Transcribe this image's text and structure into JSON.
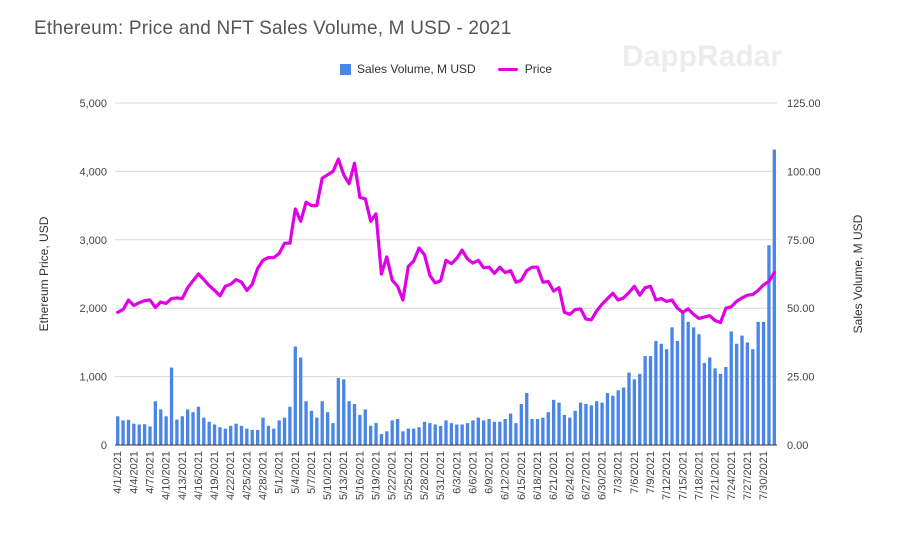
{
  "chart_data": {
    "type": "bar+line",
    "title": "Ethereum: Price and NFT Sales Volume, M USD - 2021",
    "watermark": "DappRadar",
    "legend": {
      "bar_label": "Sales Volume, M USD",
      "line_label": "Price",
      "position": "top"
    },
    "colors": {
      "bar": "#4a86e8",
      "line": "#e100e5",
      "grid": "#d9d9d9",
      "text": "#444444"
    },
    "left_axis": {
      "label": "Ethereum Price, USD",
      "min": 0,
      "max": 5000,
      "ticks": [
        "0",
        "1,000",
        "2,000",
        "3,000",
        "4,000",
        "5,000"
      ]
    },
    "right_axis": {
      "label": "Sales Volume, M USD",
      "min": 0,
      "max": 125,
      "ticks": [
        "0.00",
        "25.00",
        "50.00",
        "75.00",
        "100.00",
        "125.00"
      ]
    },
    "x_tick_labels": [
      "4/1/2021",
      "4/4/2021",
      "4/7/2021",
      "4/10/2021",
      "4/13/2021",
      "4/16/2021",
      "4/19/2021",
      "4/22/2021",
      "4/25/2021",
      "4/28/2021",
      "5/1/2021",
      "5/4/2021",
      "5/7/2021",
      "5/10/2021",
      "5/13/2021",
      "5/16/2021",
      "5/19/2021",
      "5/22/2021",
      "5/25/2021",
      "5/28/2021",
      "5/31/2021",
      "6/3/2021",
      "6/6/2021",
      "6/9/2021",
      "6/12/2021",
      "6/15/2021",
      "6/18/2021",
      "6/21/2021",
      "6/24/2021",
      "6/27/2021",
      "6/30/2021",
      "7/3/2021",
      "7/6/2021",
      "7/9/2021",
      "7/12/2021",
      "7/15/2021",
      "7/18/2021",
      "7/21/2021",
      "7/24/2021",
      "7/27/2021",
      "7/30/2021"
    ],
    "series": [
      {
        "name": "Sales Volume, M USD",
        "axis": "right",
        "values": [
          10.5,
          9.0,
          9.2,
          7.8,
          7.5,
          7.6,
          6.8,
          16.0,
          13.0,
          10.5,
          28.3,
          9.3,
          10.5,
          13.0,
          12.0,
          14.0,
          10.0,
          8.5,
          7.5,
          6.5,
          6.0,
          7.0,
          7.8,
          7.0,
          6.0,
          5.5,
          5.5,
          10.0,
          7.0,
          6.0,
          9.0,
          10.0,
          14.0,
          36.0,
          32.0,
          16.0,
          12.5,
          10.0,
          16.0,
          12.0,
          8.0,
          24.5,
          24.0,
          16.0,
          15.0,
          11.0,
          13.0,
          7.0,
          8.0,
          4.0,
          5.0,
          9.0,
          9.5,
          5.0,
          6.0,
          6.0,
          6.5,
          8.5,
          8.0,
          7.5,
          7.0,
          9.0,
          8.0,
          7.5,
          7.5,
          8.0,
          9.0,
          10.0,
          9.0,
          9.5,
          8.5,
          8.5,
          9.5,
          11.5,
          8.0,
          15.0,
          19.0,
          9.5,
          9.5,
          10.0,
          12.0,
          16.5,
          15.5,
          11.0,
          10.0,
          12.5,
          15.5,
          15.0,
          14.5,
          16.0,
          15.5,
          19.0,
          18.0,
          20.0,
          21.0,
          26.5,
          24.0,
          26.0,
          32.5,
          32.5,
          38.0,
          37.0,
          35.0,
          43.0,
          38.0,
          49.0,
          45.0,
          43.0,
          40.5,
          30.0,
          32.0,
          28.0,
          26.0,
          28.5,
          41.5,
          37.0,
          40.0,
          37.5,
          35.0,
          45.0,
          45.0,
          73.0,
          108.0
        ]
      },
      {
        "name": "Price",
        "axis": "left",
        "values": [
          1940,
          1980,
          2120,
          2040,
          2080,
          2110,
          2120,
          2010,
          2090,
          2070,
          2140,
          2150,
          2140,
          2300,
          2400,
          2500,
          2420,
          2330,
          2260,
          2180,
          2320,
          2350,
          2420,
          2380,
          2260,
          2350,
          2580,
          2700,
          2740,
          2740,
          2800,
          2950,
          2950,
          3450,
          3270,
          3550,
          3500,
          3500,
          3900,
          3950,
          4000,
          4180,
          3950,
          3820,
          4120,
          3620,
          3600,
          3270,
          3380,
          2500,
          2750,
          2410,
          2320,
          2120,
          2610,
          2690,
          2880,
          2780,
          2480,
          2370,
          2400,
          2700,
          2650,
          2730,
          2850,
          2720,
          2660,
          2700,
          2590,
          2600,
          2510,
          2600,
          2520,
          2550,
          2380,
          2410,
          2550,
          2600,
          2600,
          2380,
          2390,
          2250,
          2300,
          1940,
          1910,
          1980,
          1990,
          1840,
          1830,
          1960,
          2060,
          2140,
          2220,
          2120,
          2150,
          2230,
          2320,
          2190,
          2300,
          2320,
          2120,
          2140,
          2100,
          2120,
          2000,
          1940,
          1990,
          1910,
          1850,
          1870,
          1890,
          1820,
          1790,
          2000,
          2020,
          2100,
          2150,
          2190,
          2200,
          2260,
          2340,
          2390,
          2520
        ]
      }
    ]
  }
}
